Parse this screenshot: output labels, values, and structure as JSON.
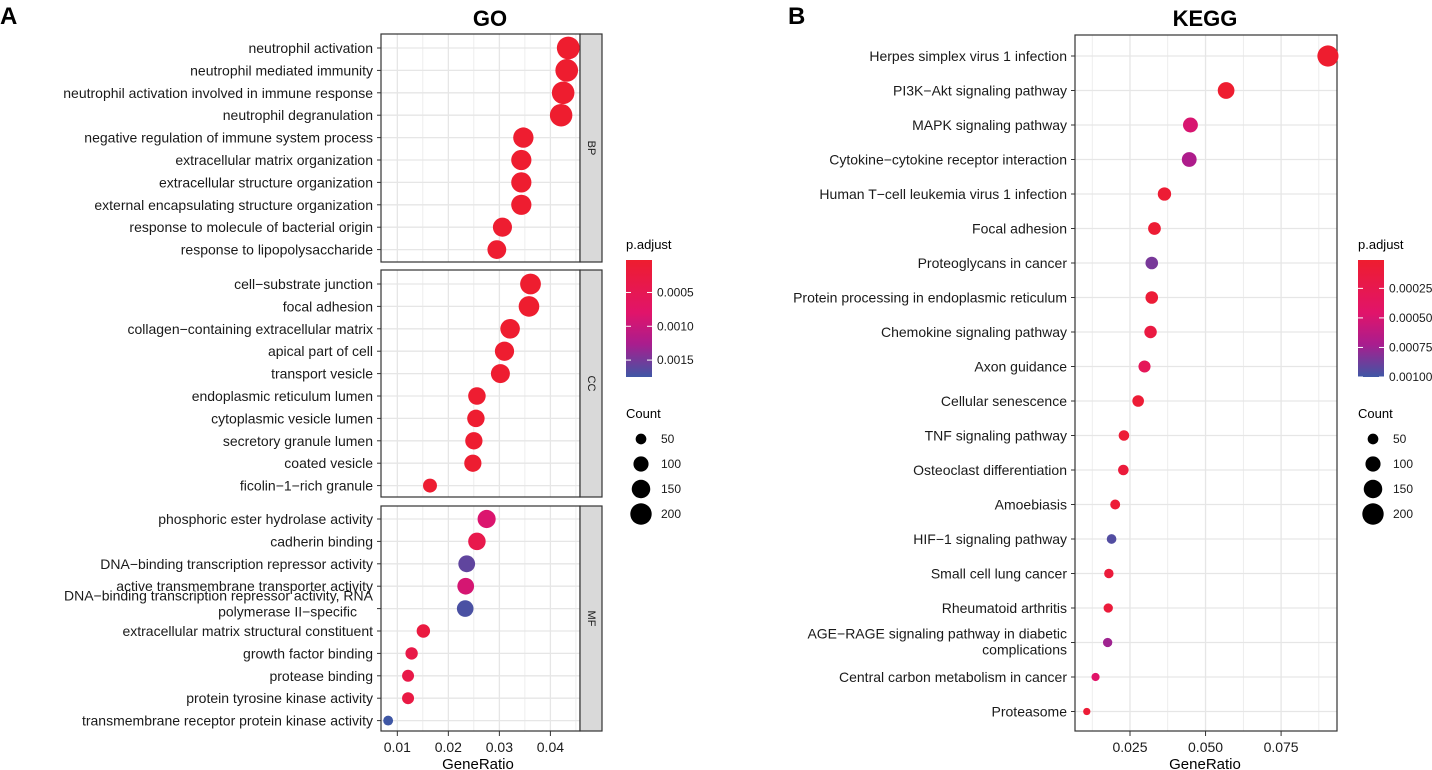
{
  "panel_labels": {
    "a": "A",
    "b": "B"
  },
  "legend": {
    "title": "p.adjust",
    "count_title": "Count"
  },
  "colors": {
    "low_p": "#EE1D2F",
    "mid_p": "#C3158A",
    "high_p": "#3F57A5",
    "panel_bg": "#FFFFFF",
    "grid": "#E6E6E6",
    "strip": "#D9D9D9"
  },
  "chart_data": [
    {
      "type": "scatter",
      "subtype": "dotplot",
      "title": "GO",
      "xlabel": "GeneRatio",
      "xlim": [
        0.0068,
        0.0458
      ],
      "xticks": [
        0.01,
        0.02,
        0.03,
        0.04
      ],
      "xtick_labels": [
        "0.01",
        "0.02",
        "0.03",
        "0.04"
      ],
      "color_scale": {
        "name": "p.adjust",
        "min": 2e-05,
        "max": 0.00175,
        "ticks": [
          0.0005,
          0.001,
          0.0015
        ],
        "tick_labels": [
          "0.0005",
          "0.0010",
          "0.0015"
        ]
      },
      "size_scale": {
        "name": "Count",
        "ticks": [
          50,
          100,
          150,
          200
        ],
        "tick_labels": [
          "50",
          "100",
          "150",
          "200"
        ]
      },
      "facets": [
        {
          "name": "BP",
          "terms": [
            {
              "term": "neutrophil activation",
              "gene_ratio": 0.0435,
              "count": 214,
              "p_adjust": 2e-05
            },
            {
              "term": "neutrophil mediated immunity",
              "gene_ratio": 0.0432,
              "count": 212,
              "p_adjust": 2e-05
            },
            {
              "term": "neutrophil activation involved in immune response",
              "gene_ratio": 0.0425,
              "count": 210,
              "p_adjust": 2e-05
            },
            {
              "term": "neutrophil degranulation",
              "gene_ratio": 0.0421,
              "count": 208,
              "p_adjust": 2e-05
            },
            {
              "term": "negative regulation of immune system process",
              "gene_ratio": 0.0347,
              "count": 170,
              "p_adjust": 3e-05
            },
            {
              "term": "extracellular matrix organization",
              "gene_ratio": 0.0343,
              "count": 168,
              "p_adjust": 3e-05
            },
            {
              "term": "extracellular structure organization",
              "gene_ratio": 0.0343,
              "count": 168,
              "p_adjust": 3e-05
            },
            {
              "term": "external encapsulating structure organization",
              "gene_ratio": 0.0343,
              "count": 168,
              "p_adjust": 3e-05
            },
            {
              "term": "response to molecule of bacterial origin",
              "gene_ratio": 0.0306,
              "count": 150,
              "p_adjust": 4e-05
            },
            {
              "term": "response to lipopolysaccharide",
              "gene_ratio": 0.0295,
              "count": 145,
              "p_adjust": 4e-05
            }
          ]
        },
        {
          "name": "CC",
          "terms": [
            {
              "term": "cell−substrate junction",
              "gene_ratio": 0.0361,
              "count": 177,
              "p_adjust": 2e-05
            },
            {
              "term": "focal adhesion",
              "gene_ratio": 0.0358,
              "count": 175,
              "p_adjust": 2e-05
            },
            {
              "term": "collagen−containing extracellular matrix",
              "gene_ratio": 0.0321,
              "count": 157,
              "p_adjust": 3e-05
            },
            {
              "term": "apical part of cell",
              "gene_ratio": 0.031,
              "count": 152,
              "p_adjust": 3e-05
            },
            {
              "term": "transport vesicle",
              "gene_ratio": 0.0302,
              "count": 148,
              "p_adjust": 3e-05
            },
            {
              "term": "endoplasmic reticulum lumen",
              "gene_ratio": 0.0256,
              "count": 126,
              "p_adjust": 4e-05
            },
            {
              "term": "cytoplasmic vesicle lumen",
              "gene_ratio": 0.0254,
              "count": 125,
              "p_adjust": 4e-05
            },
            {
              "term": "secretory granule lumen",
              "gene_ratio": 0.025,
              "count": 123,
              "p_adjust": 4e-05
            },
            {
              "term": "coated vesicle",
              "gene_ratio": 0.0248,
              "count": 122,
              "p_adjust": 5e-05
            },
            {
              "term": "ficolin−1−rich granule",
              "gene_ratio": 0.0164,
              "count": 80,
              "p_adjust": 6e-05
            }
          ]
        },
        {
          "name": "MF",
          "terms": [
            {
              "term": "phosphoric ester hydrolase activity",
              "gene_ratio": 0.0275,
              "count": 135,
              "p_adjust": 0.00085
            },
            {
              "term": "cadherin binding",
              "gene_ratio": 0.0256,
              "count": 126,
              "p_adjust": 0.0004
            },
            {
              "term": "DNA−binding transcription repressor activity",
              "gene_ratio": 0.0236,
              "count": 116,
              "p_adjust": 0.0016
            },
            {
              "term": "active transmembrane transporter activity",
              "gene_ratio": 0.0234,
              "count": 115,
              "p_adjust": 0.0009
            },
            {
              "term": "DNA−binding transcription repressor activity, RNA polymerase II−specific",
              "gene_ratio": 0.0233,
              "count": 114,
              "p_adjust": 0.0017
            },
            {
              "term": "extracellular matrix structural constituent",
              "gene_ratio": 0.0151,
              "count": 74,
              "p_adjust": 0.00025
            },
            {
              "term": "growth factor binding",
              "gene_ratio": 0.0128,
              "count": 63,
              "p_adjust": 0.00035
            },
            {
              "term": "protease binding",
              "gene_ratio": 0.0121,
              "count": 59,
              "p_adjust": 0.00035
            },
            {
              "term": "protein tyrosine kinase activity",
              "gene_ratio": 0.0121,
              "count": 59,
              "p_adjust": 0.0003
            },
            {
              "term": "transmembrane receptor protein kinase activity",
              "gene_ratio": 0.0082,
              "count": 40,
              "p_adjust": 0.00175
            }
          ]
        }
      ]
    },
    {
      "type": "scatter",
      "subtype": "dotplot",
      "title": "KEGG",
      "xlabel": "GeneRatio",
      "xlim": [
        0.0068,
        0.0935
      ],
      "xticks": [
        0.025,
        0.05,
        0.075
      ],
      "xtick_labels": [
        "0.025",
        "0.050",
        "0.075"
      ],
      "color_scale": {
        "name": "p.adjust",
        "min": 1e-05,
        "max": 0.001,
        "ticks": [
          0.00025,
          0.0005,
          0.00075,
          0.001
        ],
        "tick_labels": [
          "0.00025",
          "0.00050",
          "0.00075",
          "0.00100"
        ]
      },
      "size_scale": {
        "name": "Count",
        "ticks": [
          50,
          100,
          150,
          200
        ],
        "tick_labels": [
          "50",
          "100",
          "150",
          "200"
        ]
      },
      "terms": [
        {
          "term": "Herpes simplex virus 1 infection",
          "gene_ratio": 0.0905,
          "count": 195,
          "p_adjust": 1e-05
        },
        {
          "term": "PI3K−Akt signaling pathway",
          "gene_ratio": 0.0568,
          "count": 122,
          "p_adjust": 2e-05
        },
        {
          "term": "MAPK signaling pathway",
          "gene_ratio": 0.045,
          "count": 97,
          "p_adjust": 0.0005
        },
        {
          "term": "Cytokine−cytokine receptor interaction",
          "gene_ratio": 0.0446,
          "count": 96,
          "p_adjust": 0.0007
        },
        {
          "term": "Human T−cell leukemia virus 1 infection",
          "gene_ratio": 0.0364,
          "count": 78,
          "p_adjust": 5e-05
        },
        {
          "term": "Focal adhesion",
          "gene_ratio": 0.0331,
          "count": 71,
          "p_adjust": 5e-05
        },
        {
          "term": "Proteoglycans in cancer",
          "gene_ratio": 0.0322,
          "count": 69,
          "p_adjust": 0.00085
        },
        {
          "term": "Protein processing in endoplasmic reticulum",
          "gene_ratio": 0.0322,
          "count": 69,
          "p_adjust": 7e-05
        },
        {
          "term": "Chemokine signaling pathway",
          "gene_ratio": 0.0318,
          "count": 68,
          "p_adjust": 0.00015
        },
        {
          "term": "Axon guidance",
          "gene_ratio": 0.0298,
          "count": 64,
          "p_adjust": 0.00033
        },
        {
          "term": "Cellular senescence",
          "gene_ratio": 0.0277,
          "count": 59,
          "p_adjust": 6e-05
        },
        {
          "term": "TNF signaling pathway",
          "gene_ratio": 0.023,
          "count": 49,
          "p_adjust": 6e-05
        },
        {
          "term": "Osteoclast differentiation",
          "gene_ratio": 0.0228,
          "count": 49,
          "p_adjust": 0.0001
        },
        {
          "term": "Amoebiasis",
          "gene_ratio": 0.0201,
          "count": 43,
          "p_adjust": 6e-05
        },
        {
          "term": "HIF−1 signaling pathway",
          "gene_ratio": 0.0189,
          "count": 41,
          "p_adjust": 0.00095
        },
        {
          "term": "Small cell lung cancer",
          "gene_ratio": 0.018,
          "count": 39,
          "p_adjust": 0.0001
        },
        {
          "term": "Rheumatoid arthritis",
          "gene_ratio": 0.0178,
          "count": 38,
          "p_adjust": 0.0001
        },
        {
          "term": "AGE−RAGE signaling pathway in diabetic complications",
          "gene_ratio": 0.0176,
          "count": 38,
          "p_adjust": 0.00075
        },
        {
          "term": "Central carbon metabolism in cancer",
          "gene_ratio": 0.0136,
          "count": 29,
          "p_adjust": 0.00045
        },
        {
          "term": "Proteasome",
          "gene_ratio": 0.0107,
          "count": 23,
          "p_adjust": 6e-05
        }
      ]
    }
  ]
}
